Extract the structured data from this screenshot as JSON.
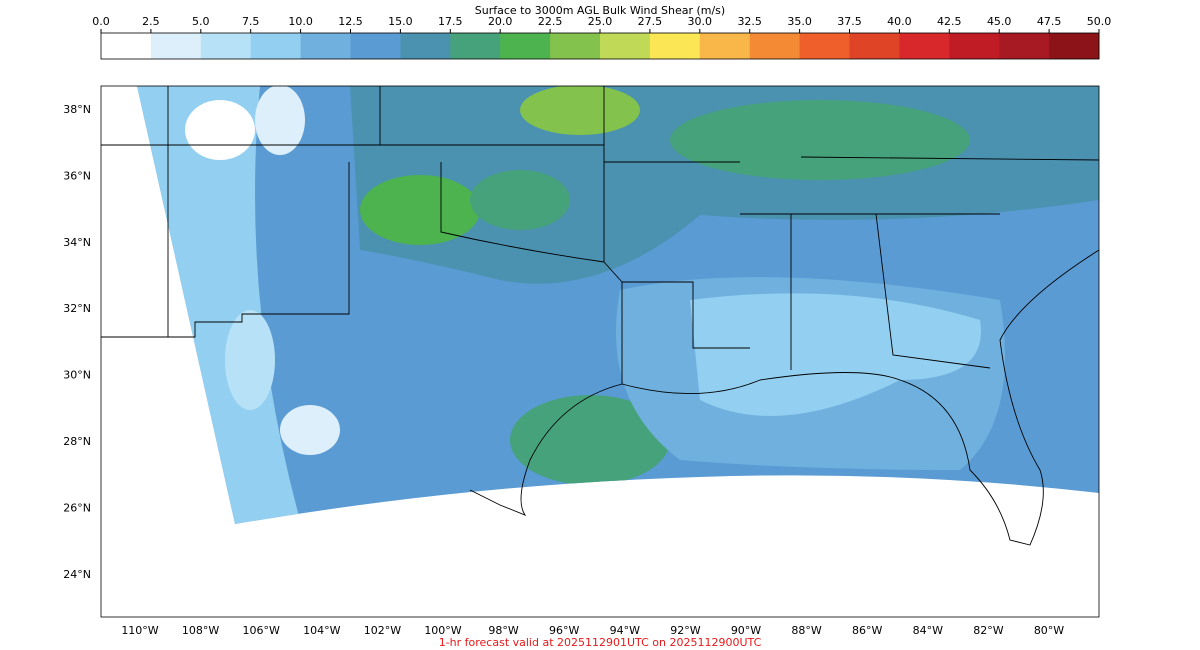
{
  "colorbar": {
    "title": "Surface to 3000m AGL Bulk Wind Shear (m/s)",
    "ticks": [
      {
        "value": 0,
        "label": "0.0"
      },
      {
        "value": 2.5,
        "label": "2.5"
      },
      {
        "value": 5,
        "label": "5.0"
      },
      {
        "value": 7.5,
        "label": "7.5"
      },
      {
        "value": 10,
        "label": "10.0"
      },
      {
        "value": 12.5,
        "label": "12.5"
      },
      {
        "value": 15,
        "label": "15.0"
      },
      {
        "value": 17.5,
        "label": "17.5"
      },
      {
        "value": 20,
        "label": "20.0"
      },
      {
        "value": 22.5,
        "label": "22.5"
      },
      {
        "value": 25,
        "label": "25.0"
      },
      {
        "value": 27.5,
        "label": "27.5"
      },
      {
        "value": 30,
        "label": "30.0"
      },
      {
        "value": 32.5,
        "label": "32.5"
      },
      {
        "value": 35,
        "label": "35.0"
      },
      {
        "value": 37.5,
        "label": "37.5"
      },
      {
        "value": 40,
        "label": "40.0"
      },
      {
        "value": 42.5,
        "label": "42.5"
      },
      {
        "value": 45,
        "label": "45.0"
      },
      {
        "value": 47.5,
        "label": "47.5"
      },
      {
        "value": 50,
        "label": "50.0"
      }
    ],
    "lim": [
      0,
      50
    ],
    "colors": [
      "#ffffff",
      "#ddeffa",
      "#b7e1f6",
      "#92cff0",
      "#6fb0de",
      "#5a9bd4",
      "#4a92b0",
      "#45a27a",
      "#4db34f",
      "#83c24c",
      "#c0d957",
      "#fbe655",
      "#f9b74a",
      "#f48b34",
      "#ee5f2c",
      "#e04427",
      "#d8282b",
      "#c01c25",
      "#a81a23",
      "#8c1419"
    ]
  },
  "map": {
    "lat_ticks": [
      {
        "value": 38,
        "label": "38°N"
      },
      {
        "value": 36,
        "label": "36°N"
      },
      {
        "value": 34,
        "label": "34°N"
      },
      {
        "value": 32,
        "label": "32°N"
      },
      {
        "value": 30,
        "label": "30°N"
      },
      {
        "value": 28,
        "label": "28°N"
      },
      {
        "value": 26,
        "label": "26°N"
      },
      {
        "value": 24,
        "label": "24°N"
      }
    ],
    "lon_ticks": [
      {
        "value": -110,
        "label": "110°W"
      },
      {
        "value": -108,
        "label": "108°W"
      },
      {
        "value": -106,
        "label": "106°W"
      },
      {
        "value": -104,
        "label": "104°W"
      },
      {
        "value": -102,
        "label": "102°W"
      },
      {
        "value": -100,
        "label": "100°W"
      },
      {
        "value": -98,
        "label": "98°W"
      },
      {
        "value": -96,
        "label": "96°W"
      },
      {
        "value": -94,
        "label": "94°W"
      },
      {
        "value": -92,
        "label": "92°W"
      },
      {
        "value": -90,
        "label": "90°W"
      },
      {
        "value": -88,
        "label": "88°W"
      },
      {
        "value": -86,
        "label": "86°W"
      },
      {
        "value": -84,
        "label": "84°W"
      },
      {
        "value": -82,
        "label": "82°W"
      },
      {
        "value": -80,
        "label": "80°W"
      }
    ]
  },
  "footer": "1-hr forecast valid at 2025112901UTC on 2025112900UTC"
}
